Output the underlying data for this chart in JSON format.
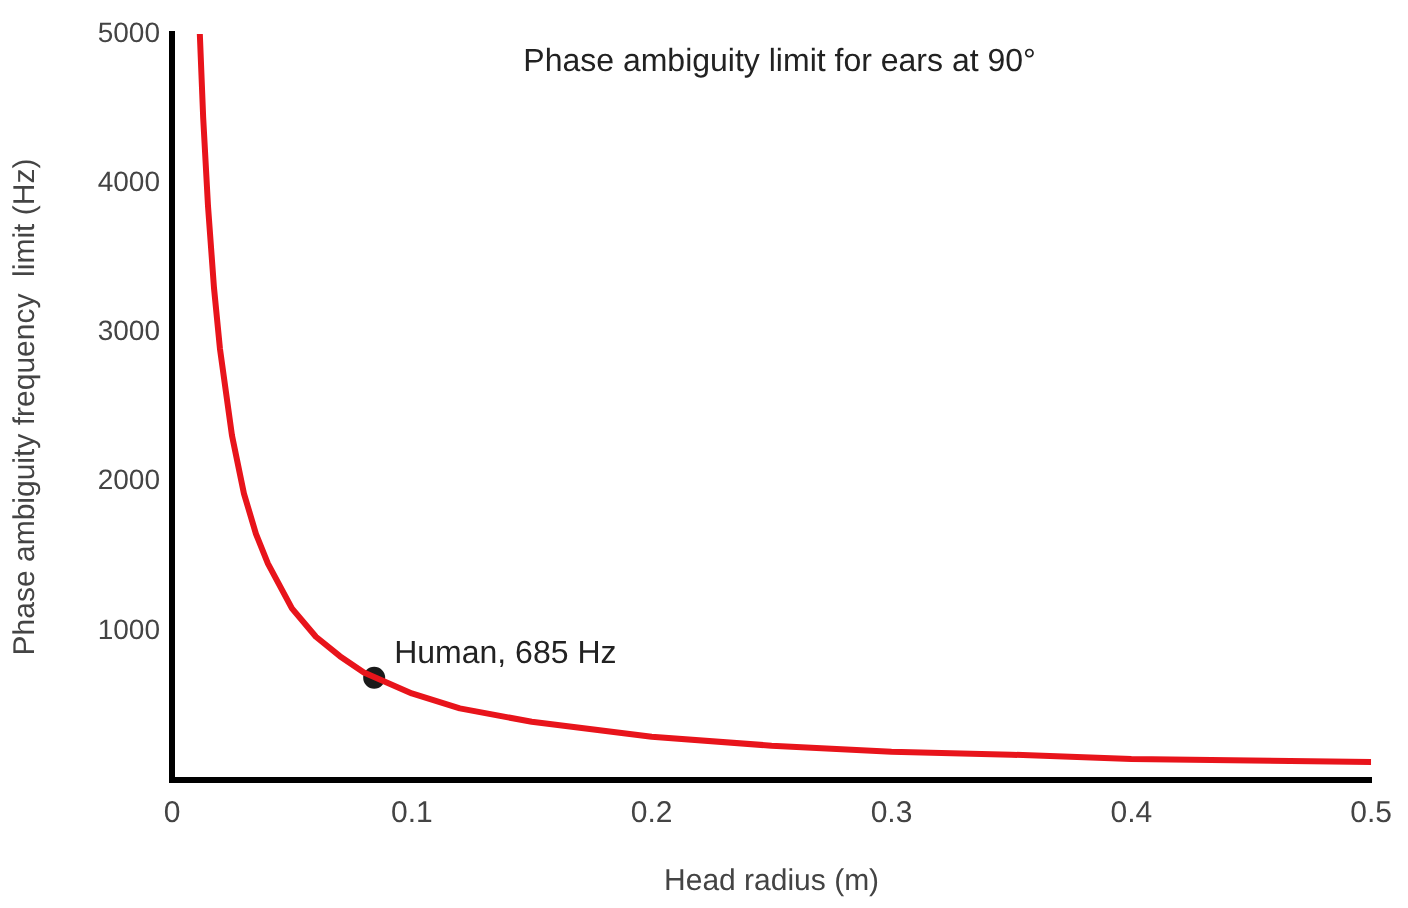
{
  "chart_data": {
    "type": "line",
    "title": "Phase ambiguity limit for ears at 90°",
    "xlabel": "Head radius (m)",
    "ylabel": "Phase ambiguity frequency  limit (Hz)",
    "xlim": [
      0,
      0.5
    ],
    "xticks": [
      0,
      0.1,
      0.2,
      0.3,
      0.4,
      0.5
    ],
    "ylim": [
      0,
      5000
    ],
    "yticks": [
      1000,
      2000,
      3000,
      4000,
      5000
    ],
    "grid": false,
    "legend": false,
    "series": [
      {
        "color": "#e8141b",
        "x": [
          0.0116,
          0.013,
          0.015,
          0.0175,
          0.02,
          0.025,
          0.03,
          0.035,
          0.04,
          0.05,
          0.06,
          0.07,
          0.08,
          0.1,
          0.12,
          0.15,
          0.2,
          0.25,
          0.3,
          0.35,
          0.4,
          0.45,
          0.5
        ],
        "values": [
          5000,
          4440,
          3850,
          3300,
          2890,
          2310,
          1920,
          1650,
          1450,
          1150,
          960,
          830,
          720,
          580,
          480,
          390,
          290,
          230,
          190,
          170,
          140,
          130,
          120
        ]
      },
      {
        "type": "scatter",
        "color": "#1a1a1a",
        "marker": "circle",
        "x": [
          0.0843
        ],
        "values": [
          685
        ]
      }
    ],
    "annotations": [
      {
        "text": "Human, 685 Hz",
        "x": 0.0843,
        "y": 685
      }
    ]
  }
}
